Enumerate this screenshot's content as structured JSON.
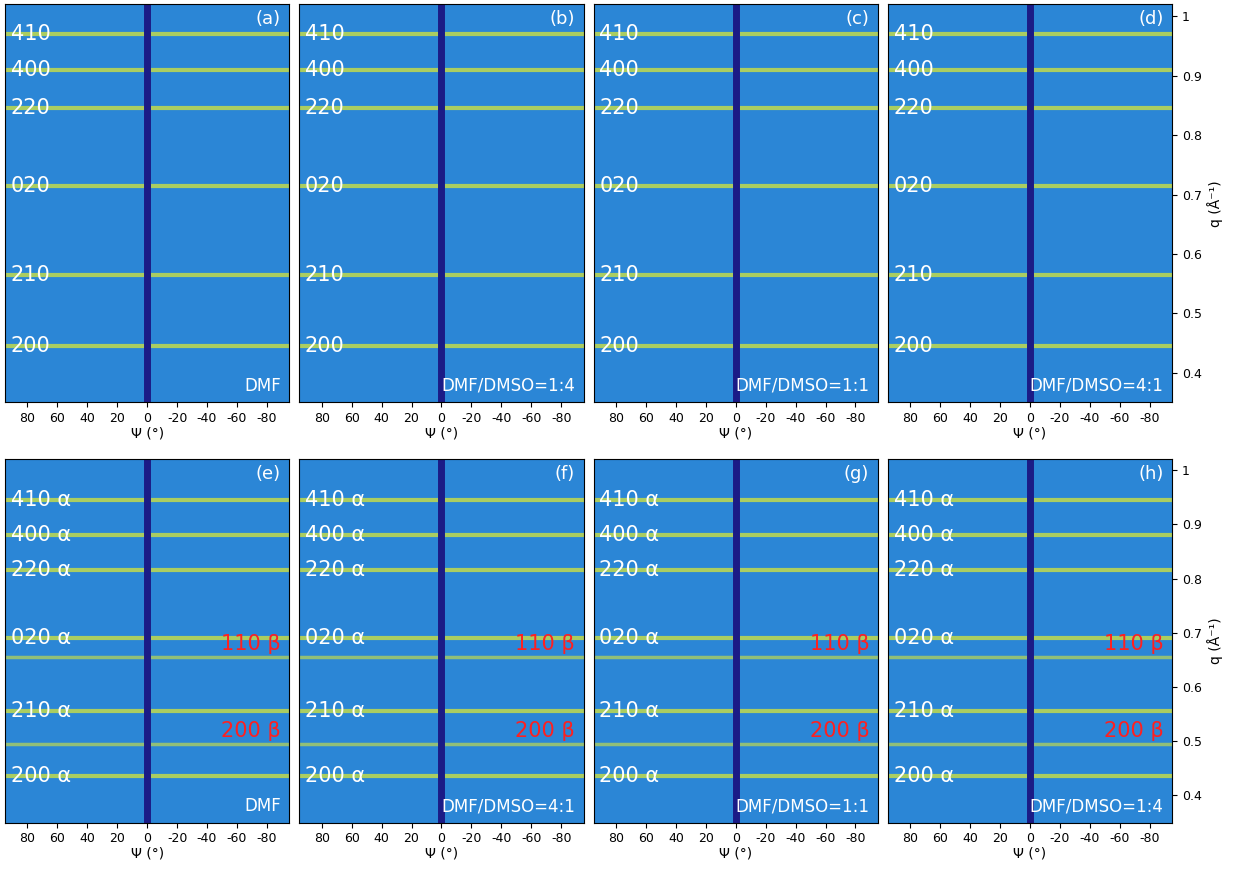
{
  "chart_data": [
    {
      "type": "diffraction",
      "panel": "(a)",
      "sample": "DMF",
      "x_label": "Ψ (°)",
      "xlim": [
        95,
        -95
      ],
      "xticks": [
        80,
        60,
        40,
        20,
        0,
        -20,
        -40,
        -60,
        -80
      ],
      "ylim": [
        0.35,
        1.02
      ],
      "alpha_peaks": [
        {
          "label": "410",
          "q": 0.97,
          "color": "#ffffff"
        },
        {
          "label": "400",
          "q": 0.91,
          "color": "#ffffff"
        },
        {
          "label": "220",
          "q": 0.845,
          "color": "#ffffff"
        },
        {
          "label": "020",
          "q": 0.715,
          "color": "#ffffff"
        },
        {
          "label": "210",
          "q": 0.565,
          "color": "#ffffff"
        },
        {
          "label": "200",
          "q": 0.445,
          "color": "#ffffff"
        }
      ],
      "beta_peaks": []
    },
    {
      "type": "diffraction",
      "panel": "(b)",
      "sample": "DMF/DMSO=1:4",
      "x_label": "Ψ (°)",
      "xlim": [
        95,
        -95
      ],
      "xticks": [
        80,
        60,
        40,
        20,
        0,
        -20,
        -40,
        -60,
        -80
      ],
      "ylim": [
        0.35,
        1.02
      ],
      "alpha_peaks": [
        {
          "label": "410",
          "q": 0.97,
          "color": "#ffffff"
        },
        {
          "label": "400",
          "q": 0.91,
          "color": "#ffffff"
        },
        {
          "label": "220",
          "q": 0.845,
          "color": "#ffffff"
        },
        {
          "label": "020",
          "q": 0.715,
          "color": "#ffffff"
        },
        {
          "label": "210",
          "q": 0.565,
          "color": "#ffffff"
        },
        {
          "label": "200",
          "q": 0.445,
          "color": "#ffffff"
        }
      ],
      "beta_peaks": []
    },
    {
      "type": "diffraction",
      "panel": "(c)",
      "sample": "DMF/DMSO=1:1",
      "x_label": "Ψ (°)",
      "xlim": [
        95,
        -95
      ],
      "xticks": [
        80,
        60,
        40,
        20,
        0,
        -20,
        -40,
        -60,
        -80
      ],
      "ylim": [
        0.35,
        1.02
      ],
      "alpha_peaks": [
        {
          "label": "410",
          "q": 0.97,
          "color": "#ffffff"
        },
        {
          "label": "400",
          "q": 0.91,
          "color": "#ffffff"
        },
        {
          "label": "220",
          "q": 0.845,
          "color": "#ffffff"
        },
        {
          "label": "020",
          "q": 0.715,
          "color": "#ffffff"
        },
        {
          "label": "210",
          "q": 0.565,
          "color": "#ffffff"
        },
        {
          "label": "200",
          "q": 0.445,
          "color": "#ffffff"
        }
      ],
      "beta_peaks": []
    },
    {
      "type": "diffraction",
      "panel": "(d)",
      "sample": "DMF/DMSO=4:1",
      "x_label": "Ψ (°)",
      "y_label": "q (Å⁻¹)",
      "xlim": [
        95,
        -95
      ],
      "xticks": [
        80,
        60,
        40,
        20,
        0,
        -20,
        -40,
        -60,
        -80
      ],
      "ylim": [
        0.35,
        1.02
      ],
      "yticks": [
        0.4,
        0.5,
        0.6,
        0.7,
        0.8,
        0.9,
        1
      ],
      "alpha_peaks": [
        {
          "label": "410",
          "q": 0.97,
          "color": "#ffffff"
        },
        {
          "label": "400",
          "q": 0.91,
          "color": "#ffffff"
        },
        {
          "label": "220",
          "q": 0.845,
          "color": "#ffffff"
        },
        {
          "label": "020",
          "q": 0.715,
          "color": "#ffffff"
        },
        {
          "label": "210",
          "q": 0.565,
          "color": "#ffffff"
        },
        {
          "label": "200",
          "q": 0.445,
          "color": "#ffffff"
        }
      ],
      "beta_peaks": []
    },
    {
      "type": "diffraction",
      "panel": "(e)",
      "sample": "DMF",
      "x_label": "Ψ (°)",
      "xlim": [
        95,
        -95
      ],
      "xticks": [
        80,
        60,
        40,
        20,
        0,
        -20,
        -40,
        -60,
        -80
      ],
      "ylim": [
        0.35,
        1.02
      ],
      "alpha_peaks": [
        {
          "label": "410 α",
          "q": 0.945,
          "color": "#ffffff"
        },
        {
          "label": "400 α",
          "q": 0.88,
          "color": "#ffffff"
        },
        {
          "label": "220 α",
          "q": 0.815,
          "color": "#ffffff"
        },
        {
          "label": "020 α",
          "q": 0.69,
          "color": "#ffffff"
        },
        {
          "label": "210 α",
          "q": 0.555,
          "color": "#ffffff"
        },
        {
          "label": "200 α",
          "q": 0.435,
          "color": "#ffffff"
        }
      ],
      "beta_peaks": [
        {
          "label": "110 β",
          "q": 0.655,
          "color": "#ff2020"
        },
        {
          "label": "200 β",
          "q": 0.495,
          "color": "#ff2020"
        }
      ]
    },
    {
      "type": "diffraction",
      "panel": "(f)",
      "sample": "DMF/DMSO=4:1",
      "x_label": "Ψ (°)",
      "xlim": [
        95,
        -95
      ],
      "xticks": [
        80,
        60,
        40,
        20,
        0,
        -20,
        -40,
        -60,
        -80
      ],
      "ylim": [
        0.35,
        1.02
      ],
      "alpha_peaks": [
        {
          "label": "410 α",
          "q": 0.945,
          "color": "#ffffff"
        },
        {
          "label": "400 α",
          "q": 0.88,
          "color": "#ffffff"
        },
        {
          "label": "220 α",
          "q": 0.815,
          "color": "#ffffff"
        },
        {
          "label": "020 α",
          "q": 0.69,
          "color": "#ffffff"
        },
        {
          "label": "210 α",
          "q": 0.555,
          "color": "#ffffff"
        },
        {
          "label": "200 α",
          "q": 0.435,
          "color": "#ffffff"
        }
      ],
      "beta_peaks": [
        {
          "label": "110 β",
          "q": 0.655,
          "color": "#ff2020"
        },
        {
          "label": "200 β",
          "q": 0.495,
          "color": "#ff2020"
        }
      ]
    },
    {
      "type": "diffraction",
      "panel": "(g)",
      "sample": "DMF/DMSO=1:1",
      "x_label": "Ψ (°)",
      "xlim": [
        95,
        -95
      ],
      "xticks": [
        80,
        60,
        40,
        20,
        0,
        -20,
        -40,
        -60,
        -80
      ],
      "ylim": [
        0.35,
        1.02
      ],
      "alpha_peaks": [
        {
          "label": "410 α",
          "q": 0.945,
          "color": "#ffffff"
        },
        {
          "label": "400 α",
          "q": 0.88,
          "color": "#ffffff"
        },
        {
          "label": "220 α",
          "q": 0.815,
          "color": "#ffffff"
        },
        {
          "label": "020 α",
          "q": 0.69,
          "color": "#ffffff"
        },
        {
          "label": "210 α",
          "q": 0.555,
          "color": "#ffffff"
        },
        {
          "label": "200 α",
          "q": 0.435,
          "color": "#ffffff"
        }
      ],
      "beta_peaks": [
        {
          "label": "110 β",
          "q": 0.655,
          "color": "#ff2020"
        },
        {
          "label": "200 β",
          "q": 0.495,
          "color": "#ff2020"
        }
      ]
    },
    {
      "type": "diffraction",
      "panel": "(h)",
      "sample": "DMF/DMSO=1:4",
      "x_label": "Ψ (°)",
      "y_label": "q (Å⁻¹)",
      "xlim": [
        95,
        -95
      ],
      "xticks": [
        80,
        60,
        40,
        20,
        0,
        -20,
        -40,
        -60,
        -80
      ],
      "ylim": [
        0.35,
        1.02
      ],
      "yticks": [
        0.4,
        0.5,
        0.6,
        0.7,
        0.8,
        0.9,
        1
      ],
      "alpha_peaks": [
        {
          "label": "410 α",
          "q": 0.945,
          "color": "#ffffff"
        },
        {
          "label": "400 α",
          "q": 0.88,
          "color": "#ffffff"
        },
        {
          "label": "220 α",
          "q": 0.815,
          "color": "#ffffff"
        },
        {
          "label": "020 α",
          "q": 0.69,
          "color": "#ffffff"
        },
        {
          "label": "210 α",
          "q": 0.555,
          "color": "#ffffff"
        },
        {
          "label": "200 α",
          "q": 0.435,
          "color": "#ffffff"
        }
      ],
      "beta_peaks": [
        {
          "label": "110 β",
          "q": 0.655,
          "color": "#ff2020"
        },
        {
          "label": "200 β",
          "q": 0.495,
          "color": "#ff2020"
        }
      ]
    }
  ]
}
